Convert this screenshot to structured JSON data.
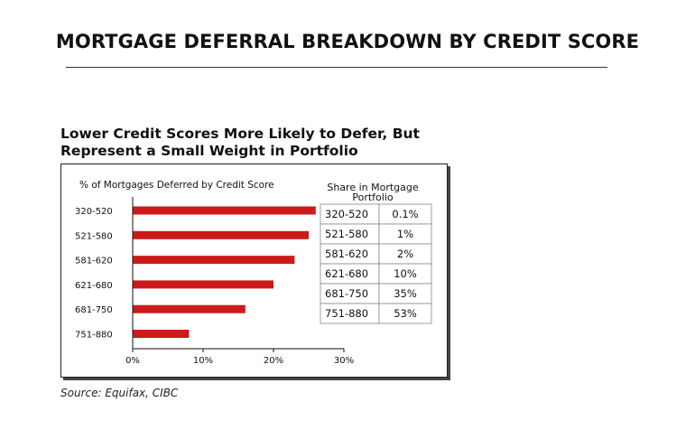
{
  "slide": {
    "title": "MORTGAGE DEFERRAL BREAKDOWN BY CREDIT SCORE"
  },
  "chart_heading": {
    "line1": "Lower Credit Scores More Likely to Defer, But",
    "line2": "Represent a Small Weight in Portfolio"
  },
  "source": "Source: Equifax, CIBC",
  "colors": {
    "bar": "#cc1a1a",
    "text": "#111111",
    "grid_border": "#888888"
  },
  "chart_data": [
    {
      "type": "bar",
      "orientation": "horizontal",
      "title": "% of Mortgages Deferred by Credit Score",
      "categories": [
        "320-520",
        "521-580",
        "581-620",
        "621-680",
        "681-750",
        "751-880"
      ],
      "values": [
        26,
        25,
        23,
        20,
        16,
        8
      ],
      "xlim": [
        0,
        30
      ],
      "x_ticks": [
        "0%",
        "10%",
        "20%",
        "30%"
      ],
      "x_tick_values": [
        0,
        10,
        20,
        30
      ],
      "grid": false
    },
    {
      "type": "table",
      "title_line1": "Share in Mortgage",
      "title_line2": "Portfolio",
      "rows": [
        {
          "range": "320-520",
          "share": "0.1%"
        },
        {
          "range": "521-580",
          "share": "1%"
        },
        {
          "range": "581-620",
          "share": "2%"
        },
        {
          "range": "621-680",
          "share": "10%"
        },
        {
          "range": "681-750",
          "share": "35%"
        },
        {
          "range": "751-880",
          "share": "53%"
        }
      ]
    }
  ]
}
